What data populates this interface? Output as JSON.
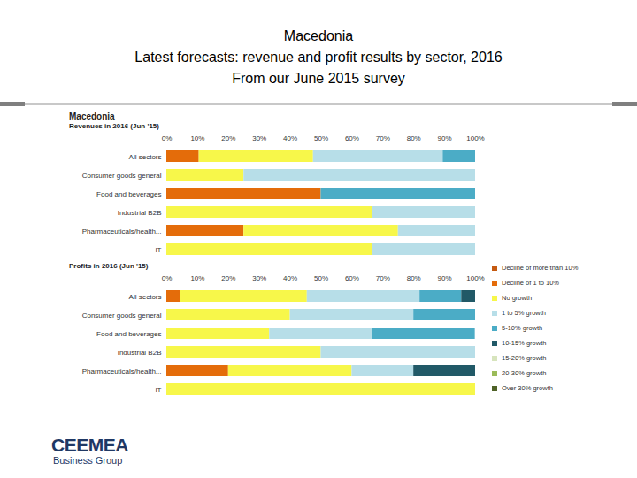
{
  "page": {
    "title": "Macedonia",
    "subtitle": "Latest forecasts: revenue and profit results by sector, 2016",
    "caption": "From our June 2015 survey",
    "panel_heading": "Macedonia",
    "logo": "CEEMEA",
    "logo_tagline": "Business Group"
  },
  "chart_data": [
    {
      "type": "bar",
      "title": "Revenues in 2016 (Jun '15)",
      "orientation": "horizontal",
      "stacked": true,
      "legend": "right",
      "categories": [
        "All sectors",
        "Consumer goods general",
        "Food and beverages",
        "Industrial B2B",
        "Pharmaceuticals/health...",
        "IT"
      ],
      "xlim": [
        0,
        100
      ],
      "xticks": [
        {
          "value": 0,
          "label": "0%"
        },
        {
          "value": 10,
          "label": "10%"
        },
        {
          "value": 20,
          "label": "20%"
        },
        {
          "value": 30,
          "label": "30%"
        },
        {
          "value": 40,
          "label": "40%"
        },
        {
          "value": 50,
          "label": "50%"
        },
        {
          "value": 60,
          "label": "60%"
        },
        {
          "value": 70,
          "label": "70%"
        },
        {
          "value": 80,
          "label": "80%"
        },
        {
          "value": 90,
          "label": "90%"
        },
        {
          "value": 100,
          "label": "100%"
        }
      ],
      "series": [
        {
          "name": "Decline of more than 10%",
          "color": "#c55a11",
          "values": [
            0,
            0,
            0,
            0,
            0,
            0
          ]
        },
        {
          "name": "Decline of 1 to 10%",
          "color": "#e46c0a",
          "values": [
            10.5,
            0,
            50,
            0,
            25,
            0
          ]
        },
        {
          "name": "No growth",
          "color": "#f7f74a",
          "values": [
            37,
            25,
            0,
            66.7,
            50,
            66.7
          ]
        },
        {
          "name": "1 to 5% growth",
          "color": "#b7dee8",
          "values": [
            42,
            75,
            0,
            33.3,
            25,
            33.3
          ]
        },
        {
          "name": "5-10% growth",
          "color": "#4bacc6",
          "values": [
            10.5,
            0,
            50,
            0,
            0,
            0
          ]
        },
        {
          "name": "10-15% growth",
          "color": "#215967",
          "values": [
            0,
            0,
            0,
            0,
            0,
            0
          ]
        },
        {
          "name": "15-20% growth",
          "color": "#d7e4bd",
          "values": [
            0,
            0,
            0,
            0,
            0,
            0
          ]
        },
        {
          "name": "20-30% growth",
          "color": "#9bbb59",
          "values": [
            0,
            0,
            0,
            0,
            0,
            0
          ]
        },
        {
          "name": "Over 30% growth",
          "color": "#4f6228",
          "values": [
            0,
            0,
            0,
            0,
            0,
            0
          ]
        }
      ]
    },
    {
      "type": "bar",
      "title": "Profits in 2016 (Jun '15)",
      "orientation": "horizontal",
      "stacked": true,
      "legend": "right",
      "categories": [
        "All sectors",
        "Consumer goods general",
        "Food and beverages",
        "Industrial B2B",
        "Pharmaceuticals/health...",
        "IT"
      ],
      "xlim": [
        0,
        100
      ],
      "xticks": [
        {
          "value": 0,
          "label": "0%"
        },
        {
          "value": 10,
          "label": "10%"
        },
        {
          "value": 20,
          "label": "20%"
        },
        {
          "value": 30,
          "label": "30%"
        },
        {
          "value": 40,
          "label": "40%"
        },
        {
          "value": 50,
          "label": "50%"
        },
        {
          "value": 60,
          "label": "60%"
        },
        {
          "value": 70,
          "label": "70%"
        },
        {
          "value": 80,
          "label": "80%"
        },
        {
          "value": 90,
          "label": "90%"
        },
        {
          "value": 100,
          "label": "100%"
        }
      ],
      "series": [
        {
          "name": "Decline of more than 10%",
          "color": "#c55a11",
          "values": [
            0,
            0,
            0,
            0,
            0,
            0
          ]
        },
        {
          "name": "Decline of 1 to 10%",
          "color": "#e46c0a",
          "values": [
            4.5,
            0,
            0,
            0,
            20,
            0
          ]
        },
        {
          "name": "No growth",
          "color": "#f7f74a",
          "values": [
            41,
            40,
            33.3,
            50,
            40,
            100
          ]
        },
        {
          "name": "1 to 5% growth",
          "color": "#b7dee8",
          "values": [
            36.5,
            40,
            33.3,
            50,
            20,
            0
          ]
        },
        {
          "name": "5-10% growth",
          "color": "#4bacc6",
          "values": [
            13.5,
            20,
            33.3,
            0,
            0,
            0
          ]
        },
        {
          "name": "10-15% growth",
          "color": "#215967",
          "values": [
            4.5,
            0,
            0,
            0,
            20,
            0
          ]
        },
        {
          "name": "15-20% growth",
          "color": "#d7e4bd",
          "values": [
            0,
            0,
            0,
            0,
            0,
            0
          ]
        },
        {
          "name": "20-30% growth",
          "color": "#9bbb59",
          "values": [
            0,
            0,
            0,
            0,
            0,
            0
          ]
        },
        {
          "name": "Over 30% growth",
          "color": "#4f6228",
          "values": [
            0,
            0,
            0,
            0,
            0,
            0
          ]
        }
      ]
    }
  ]
}
